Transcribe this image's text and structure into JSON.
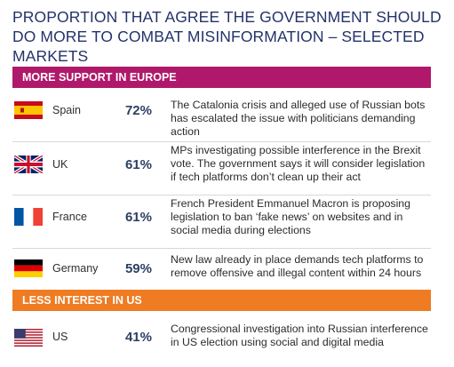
{
  "title": "PROPORTION THAT AGREE THE GOVERNMENT SHOULD DO MORE TO COMBAT MISINFORMATION – SELECTED MARKETS",
  "colors": {
    "europe_band": "#b0196b",
    "us_band": "#ef7b22",
    "title": "#24336a"
  },
  "sections": [
    {
      "label": "MORE SUPPORT IN EUROPE",
      "rows": [
        {
          "country": "Spain",
          "flag": "spain-flag-icon",
          "percent_label": "72%",
          "description": "The Catalonia crisis and alleged use of Russian bots has escalated the issue with politicians demanding action"
        },
        {
          "country": "UK",
          "flag": "uk-flag-icon",
          "percent_label": "61%",
          "description": "MPs investigating possible interference in the Brexit vote. The government says it will consider legislation if tech platforms don’t clean up their act"
        },
        {
          "country": "France",
          "flag": "france-flag-icon",
          "percent_label": "61%",
          "description": "French President Emmanuel Macron is proposing legislation to ban ‘fake news’ on websites and in social media during elections"
        },
        {
          "country": "Germany",
          "flag": "germany-flag-icon",
          "percent_label": "59%",
          "description": "New law already in place demands tech platforms to remove offensive and illegal content within 24 hours"
        }
      ]
    },
    {
      "label": "LESS INTEREST IN US",
      "rows": [
        {
          "country": "US",
          "flag": "us-flag-icon",
          "percent_label": "41%",
          "description": "Congressional investigation into Russian interference in US election using social and digital media"
        }
      ]
    }
  ],
  "chart_data": {
    "type": "table",
    "title": "PROPORTION THAT AGREE THE GOVERNMENT SHOULD DO MORE TO COMBAT MISINFORMATION – SELECTED MARKETS",
    "categories": [
      "Spain",
      "UK",
      "France",
      "Germany",
      "US"
    ],
    "values": [
      72,
      61,
      61,
      59,
      41
    ],
    "groups": [
      "MORE SUPPORT IN EUROPE",
      "MORE SUPPORT IN EUROPE",
      "MORE SUPPORT IN EUROPE",
      "MORE SUPPORT IN EUROPE",
      "LESS INTEREST IN US"
    ]
  }
}
